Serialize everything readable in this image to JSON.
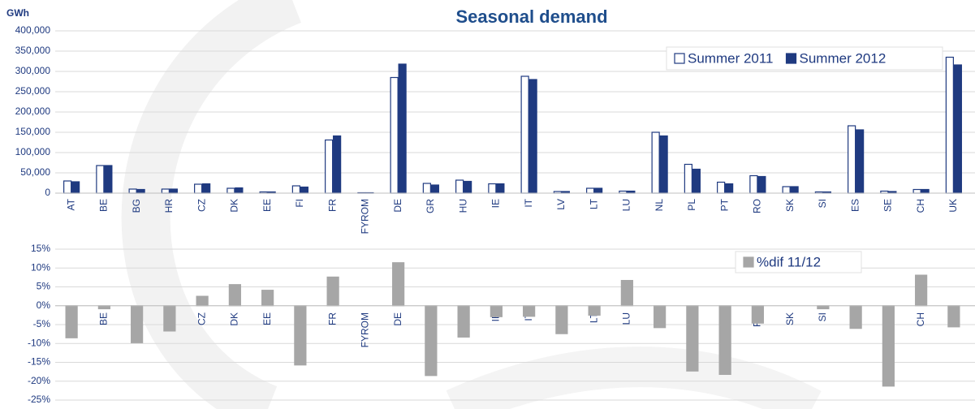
{
  "chart_data": [
    {
      "type": "bar",
      "title": "Seasonal demand",
      "ylabel": "GWh",
      "categories": [
        "AT",
        "BE",
        "BG",
        "HR",
        "CZ",
        "DK",
        "EE",
        "FI",
        "FR",
        "FYROM",
        "DE",
        "GR",
        "HU",
        "IE",
        "IT",
        "LV",
        "LT",
        "LU",
        "NL",
        "PL",
        "PT",
        "RO",
        "SK",
        "SI",
        "ES",
        "SE",
        "CH",
        "UK"
      ],
      "series": [
        {
          "name": "Summer 2011",
          "color": "#ffffff",
          "edgecolor": "#1f3a80",
          "values": [
            30000,
            68000,
            10000,
            10000,
            22000,
            12000,
            3000,
            18000,
            131000,
            1000,
            285000,
            24000,
            32000,
            23000,
            288000,
            4000,
            12000,
            5000,
            150000,
            71000,
            27000,
            43000,
            16000,
            3000,
            166000,
            5000,
            9000,
            335000
          ]
        },
        {
          "name": "Summer 2012",
          "color": "#1f3a80",
          "edgecolor": "#1f3a80",
          "values": [
            28000,
            68000,
            9000,
            10000,
            23000,
            13000,
            3000,
            15000,
            141000,
            1000,
            318000,
            20000,
            29000,
            23000,
            280000,
            4000,
            12000,
            5000,
            141000,
            59000,
            23000,
            41000,
            16000,
            3000,
            156000,
            4000,
            9000,
            316000
          ]
        }
      ],
      "ylim": [
        0,
        400000
      ],
      "yticks": [
        0,
        {
          "value": 50000,
          "label": "50,000"
        },
        {
          "value": 100000,
          "label": "100,000"
        },
        {
          "value": 150000,
          "label": "150,000"
        },
        {
          "value": 200000,
          "label": "200,000"
        },
        {
          "value": 250000,
          "label": "250,000"
        },
        {
          "value": 300000,
          "label": "300,000"
        },
        {
          "value": 350000,
          "label": "350,000"
        },
        {
          "value": 400000,
          "label": "400,000"
        }
      ],
      "grid": true,
      "legend": "upper right"
    },
    {
      "type": "bar",
      "categories": [
        "AT",
        "BE",
        "BG",
        "HR",
        "CZ",
        "DK",
        "EE",
        "FI",
        "FR",
        "FYROM",
        "DE",
        "GR",
        "HU",
        "IE",
        "IT",
        "LV",
        "LT",
        "LU",
        "NL",
        "PL",
        "PT",
        "RO",
        "SK",
        "SI",
        "ES",
        "SE",
        "CH",
        "UK"
      ],
      "series": [
        {
          "name": "%dif 11/12",
          "color": "#a6a6a6",
          "edgecolor": "#a6a6a6",
          "values": [
            -8.5,
            -0.8,
            -9.8,
            -6.7,
            2.5,
            5.6,
            4.1,
            -15.7,
            7.6,
            0,
            11.4,
            -18.5,
            -8.3,
            -2.9,
            -2.8,
            -7.4,
            -2.5,
            6.7,
            -5.8,
            -17.3,
            -18.2,
            -4.6,
            0,
            -0.8,
            -6.0,
            -21.3,
            8.1,
            -5.6
          ]
        }
      ],
      "ylim": [
        -25,
        15
      ],
      "yticks": [
        {
          "value": -25,
          "label": "-25%"
        },
        {
          "value": -20,
          "label": "-20%"
        },
        {
          "value": -15,
          "label": "-15%"
        },
        {
          "value": -10,
          "label": "-10%"
        },
        {
          "value": -5,
          "label": "-5%"
        },
        {
          "value": 0,
          "label": "0%"
        },
        {
          "value": 5,
          "label": "5%"
        },
        {
          "value": 10,
          "label": "10%"
        },
        {
          "value": 15,
          "label": "15%"
        }
      ],
      "grid": true,
      "legend": "upper right"
    }
  ]
}
